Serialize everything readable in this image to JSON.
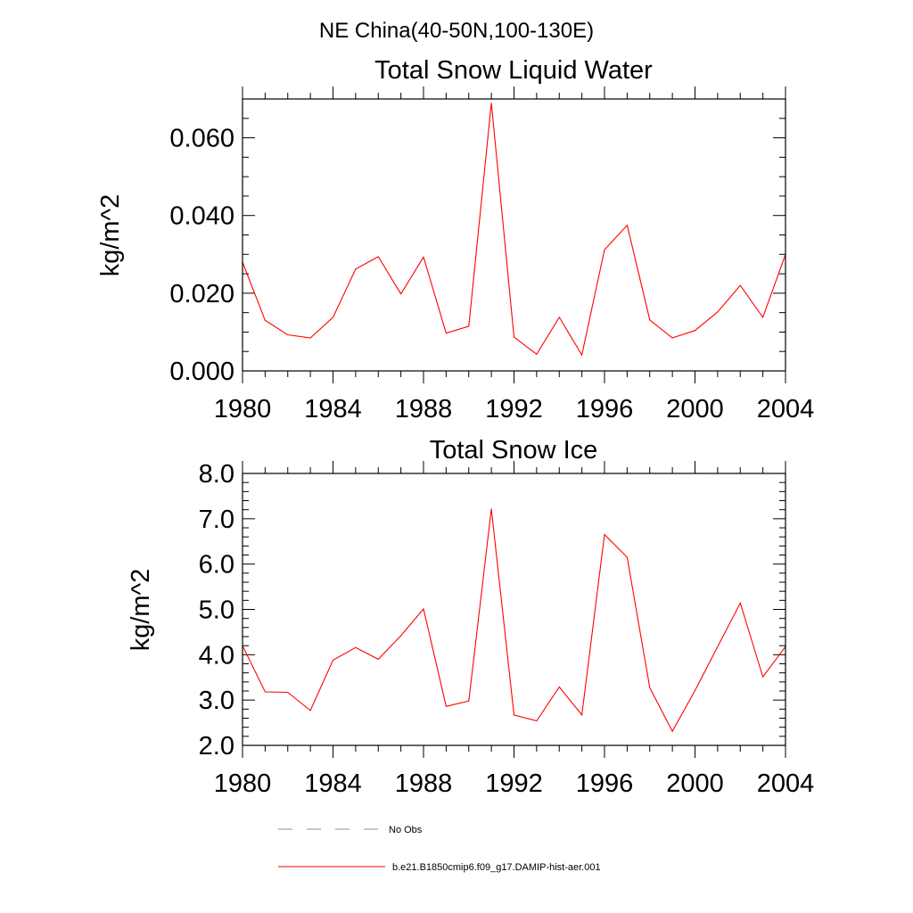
{
  "figure": {
    "suptitle": "NE China(40-50N,100-130E)"
  },
  "colors": {
    "model_series": "#ff0000",
    "obs_series": "#7f8fb0",
    "axes": "#000000"
  },
  "legend": {
    "placement": "bottom",
    "entries": [
      {
        "label": "No Obs",
        "style": "dashed",
        "color": "#7f8fb0"
      },
      {
        "label": "b.e21.B1850cmip6.f09_g17.DAMIP-hist-aer.001",
        "style": "solid",
        "color": "#ff0000"
      }
    ]
  },
  "chart_data": [
    {
      "type": "line",
      "title": "Total Snow Liquid Water",
      "xlabel": "",
      "ylabel": "kg/m^2",
      "xlim": [
        1980,
        2004
      ],
      "ylim": [
        0.0,
        0.07
      ],
      "xticks": [
        1980,
        1984,
        1988,
        1992,
        1996,
        2000,
        2004
      ],
      "xtick_labels": [
        "1980",
        "1984",
        "1988",
        "1992",
        "1996",
        "2000",
        "2004"
      ],
      "yticks": [
        0.0,
        0.02,
        0.04,
        0.06
      ],
      "ytick_labels": [
        "0.000",
        "0.020",
        "0.040",
        "0.060"
      ],
      "y_minor_step": 0.005,
      "grid": false,
      "x": [
        1980,
        1981,
        1982,
        1983,
        1984,
        1985,
        1986,
        1987,
        1988,
        1989,
        1990,
        1991,
        1992,
        1993,
        1994,
        1995,
        1996,
        1997,
        1998,
        1999,
        2000,
        2001,
        2002,
        2003,
        2004
      ],
      "series": [
        {
          "name": "b.e21.B1850cmip6.f09_g17.DAMIP-hist-aer.001",
          "values": [
            0.028,
            0.013,
            0.0093,
            0.0085,
            0.0138,
            0.0262,
            0.0294,
            0.0198,
            0.0293,
            0.0097,
            0.0115,
            0.069,
            0.0087,
            0.0043,
            0.0138,
            0.0041,
            0.0312,
            0.0375,
            0.0131,
            0.0085,
            0.0104,
            0.0152,
            0.022,
            0.0138,
            0.03
          ]
        }
      ]
    },
    {
      "type": "line",
      "title": "Total Snow Ice",
      "xlabel": "",
      "ylabel": "kg/m^2",
      "xlim": [
        1980,
        2004
      ],
      "ylim": [
        2.0,
        8.0
      ],
      "xticks": [
        1980,
        1984,
        1988,
        1992,
        1996,
        2000,
        2004
      ],
      "xtick_labels": [
        "1980",
        "1984",
        "1988",
        "1992",
        "1996",
        "2000",
        "2004"
      ],
      "yticks": [
        2.0,
        3.0,
        4.0,
        5.0,
        6.0,
        7.0,
        8.0
      ],
      "ytick_labels": [
        "2.0",
        "3.0",
        "4.0",
        "5.0",
        "6.0",
        "7.0",
        "8.0"
      ],
      "y_minor_step": 0.2,
      "grid": false,
      "x": [
        1980,
        1981,
        1982,
        1983,
        1984,
        1985,
        1986,
        1987,
        1988,
        1989,
        1990,
        1991,
        1992,
        1993,
        1994,
        1995,
        1996,
        1997,
        1998,
        1999,
        2000,
        2001,
        2002,
        2003,
        2004
      ],
      "series": [
        {
          "name": "b.e21.B1850cmip6.f09_g17.DAMIP-hist-aer.001",
          "values": [
            4.2,
            3.18,
            3.17,
            2.77,
            3.88,
            4.16,
            3.9,
            4.42,
            5.01,
            2.86,
            2.98,
            7.22,
            2.67,
            2.54,
            3.29,
            2.67,
            6.65,
            6.15,
            3.27,
            2.31,
            3.21,
            4.18,
            5.14,
            3.51,
            4.18
          ]
        }
      ]
    }
  ]
}
